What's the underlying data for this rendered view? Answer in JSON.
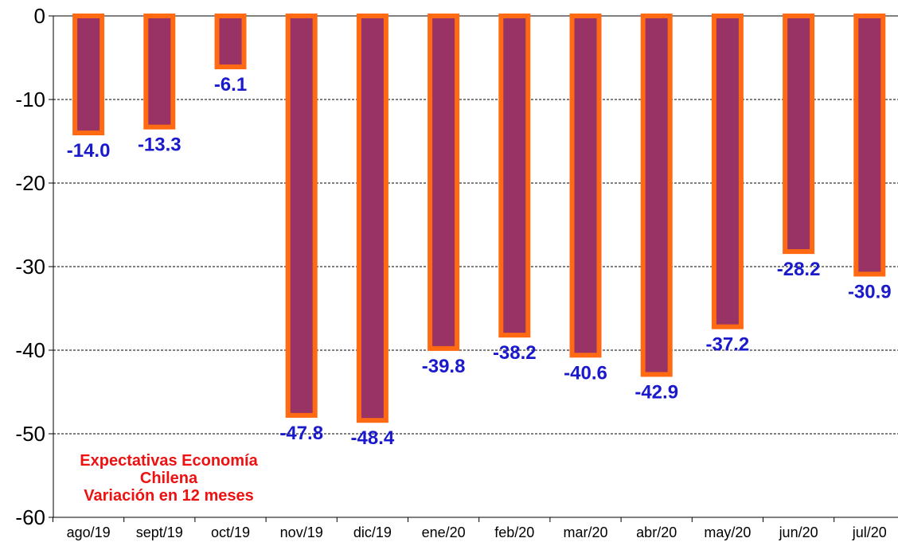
{
  "chart_data": {
    "type": "bar",
    "categories": [
      "ago/19",
      "sept/19",
      "oct/19",
      "nov/19",
      "dic/19",
      "ene/20",
      "feb/20",
      "mar/20",
      "abr/20",
      "may/20",
      "jun/20",
      "jul/20"
    ],
    "values": [
      -14.0,
      -13.3,
      -6.1,
      -47.8,
      -48.4,
      -39.8,
      -38.2,
      -40.6,
      -42.9,
      -37.2,
      -28.2,
      -30.9
    ],
    "data_labels": [
      "-14.0",
      "-13.3",
      "-6.1",
      "-47.8",
      "-48.4",
      "-39.8",
      "-38.2",
      "-40.6",
      "-42.9",
      "-37.2",
      "-28.2",
      "-30.9"
    ],
    "ylim": [
      -60,
      0
    ],
    "yticks": [
      0,
      -10,
      -20,
      -30,
      -40,
      -50,
      -60
    ],
    "grid": true,
    "annotation": [
      "Expectativas Economía",
      "Chilena",
      "Variación en 12 meses"
    ],
    "colors": {
      "bar_fill": "#993366",
      "bar_edge": "#FF6A13",
      "data_label": "#1A1ACC",
      "annotation": "#EE1111",
      "axis": "#000000",
      "tick_label": "#000000"
    }
  }
}
